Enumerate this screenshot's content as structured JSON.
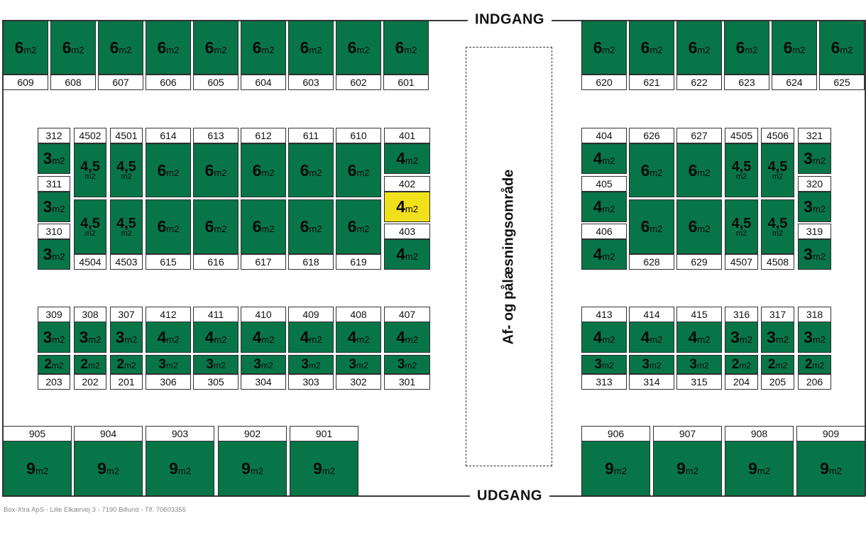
{
  "gates": {
    "entrance": "INDGANG",
    "exit": "UDGANG"
  },
  "dock_area": "Af- og pålæsningsområde",
  "area_unit": "m2",
  "colors": {
    "available": "#087548",
    "selected": "#f1e11c"
  },
  "footer": "Box-Xtra ApS - Lille Elkærvej 3 - 7190 Billund - Tlf. 70603355",
  "units": [
    {
      "id": "609",
      "area": "6"
    },
    {
      "id": "608",
      "area": "6"
    },
    {
      "id": "607",
      "area": "6"
    },
    {
      "id": "606",
      "area": "6"
    },
    {
      "id": "605",
      "area": "6"
    },
    {
      "id": "604",
      "area": "6"
    },
    {
      "id": "603",
      "area": "6"
    },
    {
      "id": "602",
      "area": "6"
    },
    {
      "id": "601",
      "area": "6"
    },
    {
      "id": "620",
      "area": "6"
    },
    {
      "id": "621",
      "area": "6"
    },
    {
      "id": "622",
      "area": "6"
    },
    {
      "id": "623",
      "area": "6"
    },
    {
      "id": "624",
      "area": "6"
    },
    {
      "id": "625",
      "area": "6"
    },
    {
      "id": "312",
      "area": "3"
    },
    {
      "id": "311",
      "area": "3"
    },
    {
      "id": "310",
      "area": "3"
    },
    {
      "id": "4502",
      "area": "4,5"
    },
    {
      "id": "4501",
      "area": "4,5"
    },
    {
      "id": "4504",
      "area": "4,5"
    },
    {
      "id": "4503",
      "area": "4,5"
    },
    {
      "id": "614",
      "area": "6"
    },
    {
      "id": "613",
      "area": "6"
    },
    {
      "id": "612",
      "area": "6"
    },
    {
      "id": "611",
      "area": "6"
    },
    {
      "id": "610",
      "area": "6"
    },
    {
      "id": "615",
      "area": "6"
    },
    {
      "id": "616",
      "area": "6"
    },
    {
      "id": "617",
      "area": "6"
    },
    {
      "id": "618",
      "area": "6"
    },
    {
      "id": "619",
      "area": "6"
    },
    {
      "id": "401",
      "area": "4"
    },
    {
      "id": "402",
      "area": "4",
      "state": "selected"
    },
    {
      "id": "403",
      "area": "4"
    },
    {
      "id": "404",
      "area": "4"
    },
    {
      "id": "405",
      "area": "4"
    },
    {
      "id": "406",
      "area": "4"
    },
    {
      "id": "626",
      "area": "6"
    },
    {
      "id": "627",
      "area": "6"
    },
    {
      "id": "628",
      "area": "6"
    },
    {
      "id": "629",
      "area": "6"
    },
    {
      "id": "4505",
      "area": "4,5"
    },
    {
      "id": "4506",
      "area": "4,5"
    },
    {
      "id": "4507",
      "area": "4,5"
    },
    {
      "id": "4508",
      "area": "4,5"
    },
    {
      "id": "321",
      "area": "3"
    },
    {
      "id": "320",
      "area": "3"
    },
    {
      "id": "319",
      "area": "3"
    },
    {
      "id": "309",
      "area": "3"
    },
    {
      "id": "308",
      "area": "3"
    },
    {
      "id": "307",
      "area": "3"
    },
    {
      "id": "412",
      "area": "4"
    },
    {
      "id": "411",
      "area": "4"
    },
    {
      "id": "410",
      "area": "4"
    },
    {
      "id": "409",
      "area": "4"
    },
    {
      "id": "408",
      "area": "4"
    },
    {
      "id": "407",
      "area": "4"
    },
    {
      "id": "203",
      "area": "2"
    },
    {
      "id": "202",
      "area": "2"
    },
    {
      "id": "201",
      "area": "2"
    },
    {
      "id": "306",
      "area": "3"
    },
    {
      "id": "305",
      "area": "3"
    },
    {
      "id": "304",
      "area": "3"
    },
    {
      "id": "303",
      "area": "3"
    },
    {
      "id": "302",
      "area": "3"
    },
    {
      "id": "301",
      "area": "3"
    },
    {
      "id": "413",
      "area": "4"
    },
    {
      "id": "414",
      "area": "4"
    },
    {
      "id": "415",
      "area": "4"
    },
    {
      "id": "316",
      "area": "3"
    },
    {
      "id": "317",
      "area": "3"
    },
    {
      "id": "318",
      "area": "3"
    },
    {
      "id": "313",
      "area": "3"
    },
    {
      "id": "314",
      "area": "3"
    },
    {
      "id": "315",
      "area": "3"
    },
    {
      "id": "204",
      "area": "2"
    },
    {
      "id": "205",
      "area": "2"
    },
    {
      "id": "206",
      "area": "2"
    },
    {
      "id": "905",
      "area": "9"
    },
    {
      "id": "904",
      "area": "9"
    },
    {
      "id": "903",
      "area": "9"
    },
    {
      "id": "902",
      "area": "9"
    },
    {
      "id": "901",
      "area": "9"
    },
    {
      "id": "906",
      "area": "9"
    },
    {
      "id": "907",
      "area": "9"
    },
    {
      "id": "908",
      "area": "9"
    },
    {
      "id": "909",
      "area": "9"
    }
  ]
}
